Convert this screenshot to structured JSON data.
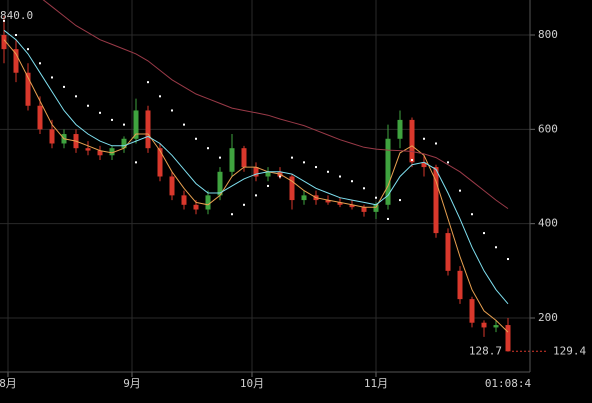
{
  "chart_data": {
    "type": "candlestick",
    "x": [
      -1,
      2,
      5,
      8,
      11,
      14,
      17,
      20,
      23,
      26,
      29,
      32,
      35,
      38,
      41,
      44,
      47,
      50,
      53,
      56,
      59,
      62,
      65,
      68,
      71,
      74,
      77,
      80,
      83,
      86,
      89,
      92,
      95,
      98,
      101,
      104,
      107,
      110,
      113,
      116,
      119,
      122,
      125
    ],
    "open": [
      800,
      770,
      720,
      650,
      600,
      570,
      590,
      560,
      555,
      545,
      560,
      580,
      640,
      560,
      500,
      460,
      440,
      430,
      460,
      510,
      560,
      520,
      500,
      510,
      500,
      450,
      460,
      450,
      445,
      440,
      435,
      425,
      440,
      580,
      620,
      530,
      520,
      380,
      300,
      240,
      190,
      180,
      185
    ],
    "high": [
      840,
      790,
      740,
      670,
      620,
      600,
      600,
      575,
      565,
      565,
      585,
      665,
      650,
      570,
      510,
      470,
      450,
      470,
      520,
      590,
      565,
      530,
      520,
      520,
      505,
      470,
      470,
      460,
      455,
      450,
      440,
      445,
      610,
      640,
      625,
      545,
      525,
      390,
      310,
      245,
      195,
      195,
      200
    ],
    "low": [
      740,
      700,
      640,
      590,
      560,
      560,
      550,
      545,
      535,
      535,
      550,
      570,
      550,
      490,
      450,
      430,
      420,
      420,
      450,
      500,
      510,
      490,
      490,
      495,
      430,
      440,
      440,
      440,
      435,
      430,
      415,
      410,
      430,
      560,
      520,
      500,
      370,
      290,
      230,
      180,
      160,
      170,
      128.7
    ],
    "close": [
      770,
      720,
      650,
      600,
      570,
      590,
      560,
      555,
      545,
      560,
      580,
      640,
      560,
      500,
      460,
      440,
      430,
      460,
      510,
      560,
      520,
      500,
      510,
      500,
      450,
      460,
      450,
      445,
      440,
      435,
      425,
      440,
      580,
      620,
      530,
      520,
      380,
      300,
      240,
      190,
      180,
      185,
      129.4
    ],
    "up_color": "#3fa33f",
    "down_color": "#d9382c",
    "lines": [
      {
        "color": "#e8a050",
        "values": [
          790,
          760,
          710,
          660,
          610,
          580,
          575,
          565,
          555,
          550,
          560,
          590,
          590,
          555,
          510,
          475,
          445,
          440,
          460,
          500,
          520,
          520,
          510,
          505,
          490,
          470,
          455,
          450,
          445,
          440,
          435,
          435,
          480,
          550,
          565,
          545,
          490,
          410,
          330,
          260,
          215,
          195,
          170
        ]
      },
      {
        "color": "#7fe0f0",
        "values": [
          810,
          790,
          760,
          720,
          680,
          640,
          610,
          590,
          575,
          565,
          565,
          575,
          585,
          570,
          545,
          515,
          485,
          465,
          465,
          480,
          495,
          505,
          510,
          510,
          505,
          490,
          475,
          465,
          455,
          450,
          445,
          440,
          460,
          500,
          525,
          530,
          515,
          465,
          410,
          350,
          300,
          260,
          230
        ]
      },
      {
        "color": "#9a3a48",
        "values": [
          null,
          null,
          null,
          880,
          860,
          840,
          820,
          805,
          790,
          780,
          770,
          760,
          745,
          725,
          705,
          690,
          675,
          665,
          655,
          645,
          640,
          635,
          630,
          622,
          615,
          608,
          598,
          588,
          578,
          570,
          562,
          558,
          556,
          555,
          553,
          548,
          540,
          525,
          510,
          490,
          470,
          450,
          432
        ]
      }
    ],
    "sar": {
      "color": "#ffffff",
      "values": [
        830,
        800,
        770,
        740,
        710,
        690,
        670,
        650,
        635,
        620,
        610,
        530,
        700,
        670,
        640,
        610,
        580,
        560,
        540,
        420,
        440,
        460,
        480,
        500,
        540,
        530,
        520,
        510,
        500,
        490,
        475,
        455,
        410,
        450,
        535,
        580,
        570,
        530,
        470,
        420,
        380,
        350,
        325
      ]
    },
    "xlim": [
      -2,
      130.5
    ],
    "xticks": [
      {
        "value": 0,
        "label": "8月"
      },
      {
        "value": 31,
        "label": "9月"
      },
      {
        "value": 61,
        "label": "10月"
      },
      {
        "value": 92,
        "label": "11月"
      }
    ],
    "ylim": [
      85.5,
      874.2
    ],
    "yticks": [
      200,
      400,
      600,
      800
    ],
    "grid": true,
    "high_marker": {
      "value": 840,
      "label": "840.0"
    },
    "low_marker": {
      "value": 128.7,
      "label": "128.7"
    },
    "last_price": {
      "value": 129.4,
      "label": "129.4"
    },
    "countdown": "01:08:4"
  }
}
